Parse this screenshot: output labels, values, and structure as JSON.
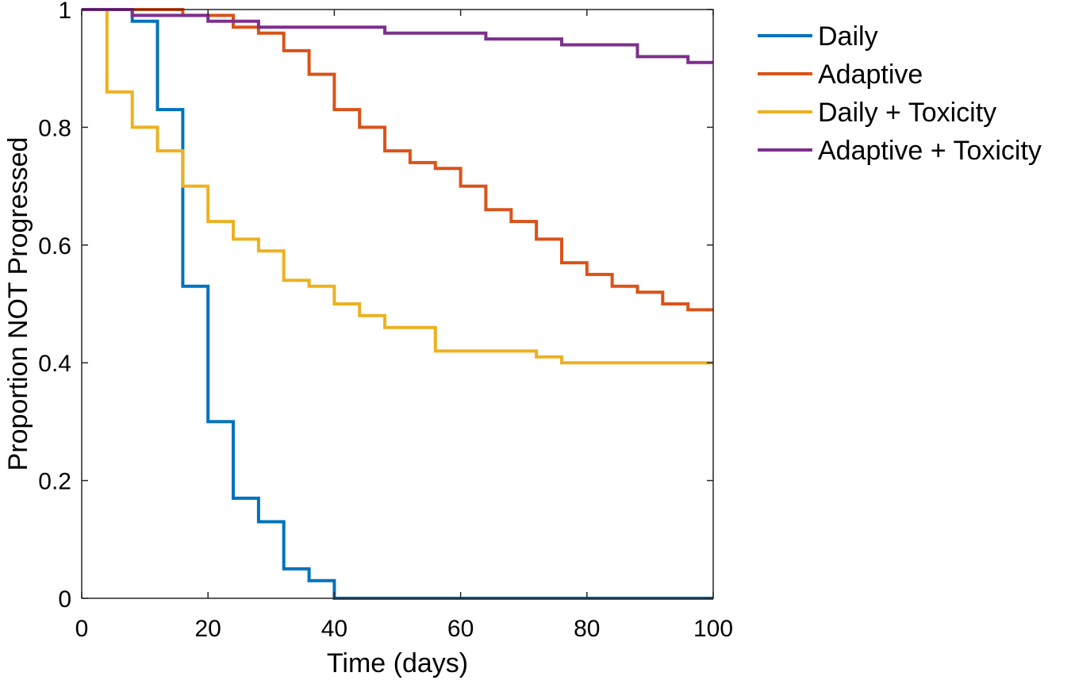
{
  "chart_data": {
    "type": "line",
    "step": true,
    "title": "",
    "xlabel": "Time (days)",
    "ylabel": "Proportion NOT Progressed",
    "xlim": [
      0,
      100
    ],
    "ylim": [
      0,
      1
    ],
    "xticks": [
      0,
      20,
      40,
      60,
      80,
      100
    ],
    "xtick_labels": [
      "0",
      "20",
      "40",
      "60",
      "80",
      "100"
    ],
    "yticks": [
      0,
      0.2,
      0.4,
      0.6,
      0.8,
      1
    ],
    "ytick_labels": [
      "0",
      "0.2",
      "0.4",
      "0.6",
      "0.8",
      "1"
    ],
    "grid": false,
    "legend_position": "outside-top-right",
    "series": [
      {
        "name": "Daily",
        "color": "#0072BD",
        "x": [
          0,
          8,
          12,
          16,
          20,
          24,
          28,
          32,
          36,
          40,
          100
        ],
        "y": [
          1,
          0.98,
          0.83,
          0.53,
          0.3,
          0.17,
          0.13,
          0.05,
          0.03,
          0,
          0
        ]
      },
      {
        "name": "Adaptive",
        "color": "#D95319",
        "x": [
          0,
          16,
          24,
          28,
          32,
          36,
          40,
          44,
          48,
          52,
          56,
          60,
          64,
          68,
          72,
          76,
          80,
          84,
          88,
          92,
          96,
          100
        ],
        "y": [
          1,
          0.99,
          0.97,
          0.96,
          0.93,
          0.89,
          0.83,
          0.8,
          0.76,
          0.74,
          0.73,
          0.7,
          0.66,
          0.64,
          0.61,
          0.57,
          0.55,
          0.53,
          0.52,
          0.5,
          0.49,
          0.49
        ]
      },
      {
        "name": "Daily + Toxicity",
        "color": "#EDB120",
        "x": [
          0,
          4,
          8,
          12,
          16,
          20,
          24,
          28,
          32,
          36,
          40,
          44,
          48,
          56,
          72,
          76,
          100
        ],
        "y": [
          1,
          0.86,
          0.8,
          0.76,
          0.7,
          0.64,
          0.61,
          0.59,
          0.54,
          0.53,
          0.5,
          0.48,
          0.46,
          0.42,
          0.41,
          0.4,
          0.4
        ]
      },
      {
        "name": "Adaptive + Toxicity",
        "color": "#7E2F8E",
        "x": [
          0,
          8,
          20,
          28,
          48,
          64,
          76,
          88,
          96,
          100
        ],
        "y": [
          1,
          0.99,
          0.98,
          0.97,
          0.96,
          0.95,
          0.94,
          0.92,
          0.91,
          0.91
        ]
      }
    ]
  }
}
